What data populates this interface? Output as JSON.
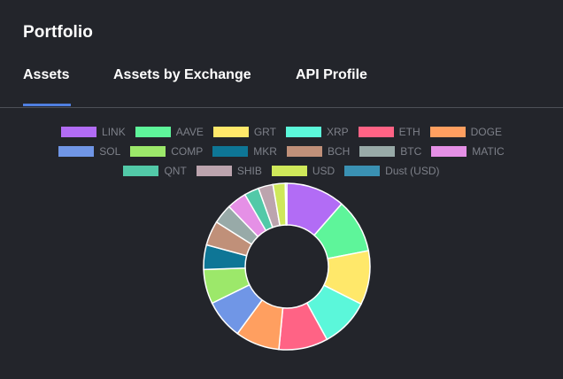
{
  "header": {
    "title": "Portfolio"
  },
  "tabs": [
    {
      "label": "Assets",
      "active": true
    },
    {
      "label": "Assets by Exchange",
      "active": false
    },
    {
      "label": "API Profile",
      "active": false
    }
  ],
  "colors": {
    "background": "#23252b",
    "accent": "#4f7fe0",
    "text": "#ffffff",
    "legend_text": "#7d8089"
  },
  "chart_data": {
    "type": "pie",
    "categories": [
      "LINK",
      "AAVE",
      "GRT",
      "XRP",
      "ETH",
      "DOGE",
      "SOL",
      "COMP",
      "MKR",
      "BCH",
      "BTC",
      "MATIC",
      "QNT",
      "SHIB",
      "USD",
      "Dust (USD)"
    ],
    "values": [
      12,
      11,
      11,
      10,
      10,
      9,
      8,
      7,
      5,
      5,
      4,
      4,
      3,
      3,
      2.5,
      0.3
    ],
    "colors": [
      "#b26cf5",
      "#5ef59a",
      "#ffe86a",
      "#5bf7da",
      "#ff6385",
      "#ff9f60",
      "#7096e6",
      "#9ce86a",
      "#0e7696",
      "#c09079",
      "#98aaa8",
      "#e590e6",
      "#52c9a8",
      "#bca4ae",
      "#cfe85a",
      "#3a91b3"
    ],
    "legend_position": "top"
  }
}
